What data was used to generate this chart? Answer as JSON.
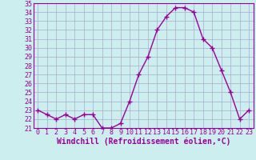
{
  "x": [
    0,
    1,
    2,
    3,
    4,
    5,
    6,
    7,
    8,
    9,
    10,
    11,
    12,
    13,
    14,
    15,
    16,
    17,
    18,
    19,
    20,
    21,
    22,
    23
  ],
  "y": [
    23,
    22.5,
    22,
    22.5,
    22,
    22.5,
    22.5,
    21,
    21,
    21.5,
    24,
    27,
    29,
    32,
    33.5,
    34.5,
    34.5,
    34,
    31,
    30,
    27.5,
    25,
    22,
    23
  ],
  "ylim": [
    21,
    35
  ],
  "xlim": [
    -0.5,
    23.5
  ],
  "yticks": [
    21,
    22,
    23,
    24,
    25,
    26,
    27,
    28,
    29,
    30,
    31,
    32,
    33,
    34,
    35
  ],
  "xticks": [
    0,
    1,
    2,
    3,
    4,
    5,
    6,
    7,
    8,
    9,
    10,
    11,
    12,
    13,
    14,
    15,
    16,
    17,
    18,
    19,
    20,
    21,
    22,
    23
  ],
  "xlabel": "Windchill (Refroidissement éolien,°C)",
  "line_color": "#990099",
  "bg_color": "#cceeee",
  "grid_color": "#aaaacc",
  "marker": "+",
  "marker_size": 4,
  "line_width": 1.0,
  "font_color": "#990099",
  "font_size_axis": 6,
  "font_size_label": 7
}
